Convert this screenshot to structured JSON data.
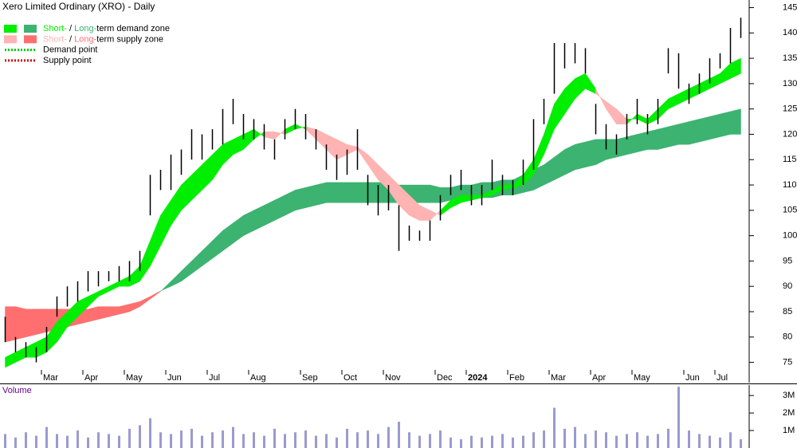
{
  "chart_data": {
    "type": "stock",
    "title": "Xero Limited Ordinary (XRO) - Daily",
    "legend": [
      {
        "parts": [
          "Short-",
          " / ",
          "Long-",
          "term demand zone"
        ],
        "kind": "demand"
      },
      {
        "parts": [
          "Short-",
          " / ",
          "Long-",
          "term supply zone"
        ],
        "kind": "supply"
      },
      {
        "parts": [
          "Demand point"
        ],
        "kind": "demand_point"
      },
      {
        "parts": [
          "Supply point"
        ],
        "kind": "supply_point"
      }
    ],
    "colors": {
      "short_demand": "#00ee00",
      "long_demand": "#3cb371",
      "short_supply": "#ffb3b3",
      "long_supply": "#ff6f6f",
      "demand_point": "#00cc00",
      "supply_point": "#dd0000",
      "price": "#000000",
      "volume": "#9a9ad0",
      "volume_label": "#660099"
    },
    "categories": [
      null,
      null,
      null,
      null,
      "Mar",
      null,
      null,
      null,
      "Apr",
      null,
      null,
      null,
      "May",
      null,
      null,
      null,
      "Jun",
      null,
      null,
      null,
      "Jul",
      null,
      null,
      null,
      "Aug",
      null,
      null,
      null,
      null,
      "Sep",
      null,
      null,
      null,
      "Oct",
      null,
      null,
      null,
      "Nov",
      null,
      null,
      null,
      null,
      "Dec",
      null,
      null,
      "2024",
      null,
      null,
      null,
      "Feb",
      null,
      null,
      null,
      "Mar",
      null,
      null,
      null,
      "Apr",
      null,
      null,
      null,
      "May",
      null,
      null,
      null,
      null,
      "Jun",
      null,
      null,
      "Jul",
      null,
      null
    ],
    "high": [
      84,
      80,
      79,
      78,
      82,
      88,
      90,
      91,
      93,
      93,
      93,
      94,
      95,
      97,
      112,
      113,
      116,
      117,
      121,
      120,
      121,
      125,
      127,
      124,
      123,
      122,
      119,
      123,
      125,
      124,
      121,
      118,
      116,
      117,
      121,
      112,
      110,
      110,
      106,
      102,
      101,
      103,
      108,
      112,
      113,
      110,
      110,
      115,
      112,
      111,
      115,
      123,
      127,
      138,
      138,
      138,
      137,
      126,
      122,
      120,
      124,
      127,
      124,
      127,
      137,
      136,
      130,
      132,
      135,
      136,
      141,
      143
    ],
    "low": [
      79,
      77,
      76,
      75,
      77,
      84,
      86,
      87,
      89,
      90,
      91,
      91,
      91,
      93,
      104,
      109,
      109,
      112,
      115,
      115,
      117,
      118,
      122,
      119,
      119,
      117,
      115,
      119,
      121,
      119,
      117,
      113,
      111,
      112,
      113,
      106,
      104,
      105,
      97,
      99,
      99,
      99,
      103,
      108,
      109,
      106,
      106,
      109,
      108,
      108,
      110,
      113,
      122,
      128,
      133,
      134,
      132,
      120,
      117,
      116,
      119,
      122,
      120,
      122,
      132,
      129,
      126,
      128,
      130,
      133,
      134,
      139
    ],
    "short_fast": [
      76,
      77,
      78,
      79,
      80,
      83,
      85,
      87,
      88,
      89,
      90,
      91,
      92,
      94,
      99,
      104,
      107,
      110,
      112,
      114,
      116,
      118,
      119,
      120,
      121,
      119.5,
      119,
      121,
      122,
      121,
      119,
      117,
      115,
      116,
      117,
      114,
      111,
      109,
      106,
      104,
      103,
      103,
      105,
      107,
      108,
      108,
      108,
      109,
      110,
      110,
      112,
      115,
      120,
      126,
      129,
      131,
      132,
      129,
      125,
      122,
      122,
      124,
      123,
      125,
      127,
      128,
      129,
      130,
      131,
      132,
      134,
      135
    ],
    "short_slow": [
      74,
      75,
      76,
      76,
      77,
      79,
      82,
      84,
      86,
      88,
      89,
      90,
      90,
      91,
      94,
      98,
      102,
      105,
      107,
      109,
      111,
      114,
      116,
      117,
      119,
      120.5,
      120.5,
      120,
      121,
      121.5,
      121,
      120,
      119,
      118,
      117.5,
      116,
      114,
      112,
      110,
      108,
      106,
      105,
      104,
      105.5,
      106.5,
      107,
      107.5,
      108,
      109,
      109.5,
      110,
      112,
      116,
      121,
      124,
      127,
      129,
      128,
      126.5,
      125,
      123,
      123,
      122,
      123,
      125,
      126,
      127,
      128,
      129,
      130,
      131,
      132
    ],
    "long_fast": [
      79,
      79.5,
      80,
      80.5,
      81,
      81.5,
      82,
      82.5,
      83,
      83.5,
      84,
      84.5,
      85,
      86,
      87.5,
      89,
      91,
      93,
      95,
      97,
      99,
      101,
      102.5,
      104,
      105,
      106,
      107,
      108,
      109,
      109.5,
      110,
      110.5,
      110.5,
      110.5,
      110.5,
      110.5,
      110.5,
      110.5,
      110,
      110,
      110,
      110,
      109.5,
      109.5,
      110,
      110,
      110.5,
      110.5,
      111,
      111,
      112,
      113,
      114,
      115.5,
      117,
      118,
      118.5,
      119,
      119,
      119,
      119.5,
      120,
      120.5,
      121,
      121.5,
      122,
      122.5,
      123,
      123.5,
      124,
      124.5,
      125
    ],
    "long_slow": [
      86,
      86,
      85.5,
      85.5,
      85.5,
      85.5,
      85.5,
      85.5,
      85.5,
      86,
      86,
      86,
      86.5,
      87,
      88,
      89.1,
      90,
      91,
      92.5,
      94,
      95.5,
      97,
      98.5,
      100,
      101,
      102,
      103,
      104,
      105,
      105.5,
      106,
      106.5,
      106.5,
      106.5,
      106.5,
      106.5,
      106.5,
      106.5,
      106.5,
      106.5,
      106.5,
      106.5,
      106.5,
      107,
      107,
      107,
      107.5,
      107.5,
      108,
      108,
      108.5,
      109,
      110,
      111,
      112,
      113,
      113.5,
      114,
      115,
      115.5,
      116,
      116.5,
      117,
      117,
      117.5,
      118,
      118,
      118.5,
      119,
      119.5,
      120,
      120
    ],
    "volume": [
      800000,
      600000,
      900000,
      700000,
      1200000,
      800000,
      700000,
      1000000,
      600000,
      900000,
      800000,
      700000,
      1100000,
      1300000,
      1700000,
      900000,
      800000,
      1000000,
      1100000,
      700000,
      900000,
      1000000,
      1200000,
      800000,
      900000,
      700000,
      1100000,
      800000,
      900000,
      1000000,
      700000,
      800000,
      600000,
      1100000,
      900000,
      1000000,
      800000,
      1200000,
      1500000,
      900000,
      700000,
      800000,
      1000000,
      600000,
      500000,
      700000,
      600000,
      700000,
      800000,
      600000,
      700000,
      900000,
      1000000,
      2300000,
      1100000,
      1200000,
      800000,
      1000000,
      900000,
      700000,
      800000,
      900000,
      700000,
      800000,
      1100000,
      3500000,
      1000000,
      800000,
      700000,
      600000,
      900000,
      500000
    ],
    "ylim": [
      71,
      146.5
    ],
    "yticks": [
      75,
      80,
      85,
      90,
      95,
      100,
      105,
      110,
      115,
      120,
      125,
      130,
      135,
      140,
      145
    ],
    "volume_title": "Volume",
    "volume_ylim": [
      0,
      3600000
    ],
    "volume_ticks": [
      {
        "value": 1000000,
        "label": "1M"
      },
      {
        "value": 2000000,
        "label": "2M"
      },
      {
        "value": 3000000,
        "label": "3M"
      }
    ]
  }
}
